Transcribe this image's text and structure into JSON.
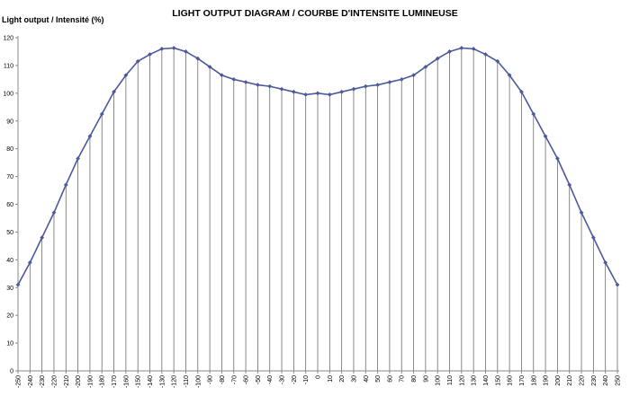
{
  "chart_data": {
    "type": "line",
    "title": "LIGHT OUTPUT DIAGRAM / COURBE D'INTENSITE LUMINEUSE",
    "ylabel": "Light output / Intensité (%)",
    "xlabel": "",
    "x": [
      -250,
      -240,
      -230,
      -220,
      -210,
      -200,
      -190,
      -180,
      -170,
      -160,
      -150,
      -140,
      -130,
      -120,
      -110,
      -100,
      -90,
      -80,
      -70,
      -60,
      -50,
      -40,
      -30,
      -20,
      -10,
      0,
      10,
      20,
      30,
      40,
      50,
      60,
      70,
      80,
      90,
      100,
      110,
      120,
      130,
      140,
      150,
      160,
      170,
      180,
      190,
      200,
      210,
      220,
      230,
      240,
      250
    ],
    "series": [
      {
        "values": [
          31,
          39,
          48,
          57,
          67,
          76.5,
          84.5,
          92.5,
          100.5,
          106.5,
          111.5,
          114,
          116,
          116.3,
          115,
          112.5,
          109.5,
          106.5,
          105,
          104,
          103,
          102.5,
          101.5,
          100.5,
          99.5,
          100,
          99.5,
          100.5,
          101.5,
          102.5,
          103,
          104,
          105,
          106.5,
          109.5,
          112.5,
          115,
          116.3,
          116,
          114,
          111.5,
          106.5,
          100.5,
          92.5,
          84.5,
          76.5,
          67,
          57,
          48,
          39,
          31
        ],
        "color": "#4a5a9a"
      }
    ],
    "ylim": [
      0,
      120
    ],
    "yticks": [
      0,
      10,
      20,
      30,
      40,
      50,
      60,
      70,
      80,
      90,
      100,
      110,
      120
    ],
    "xlim": [
      -250,
      250
    ],
    "grid": "vertical lines at every x value",
    "legend": "none"
  }
}
